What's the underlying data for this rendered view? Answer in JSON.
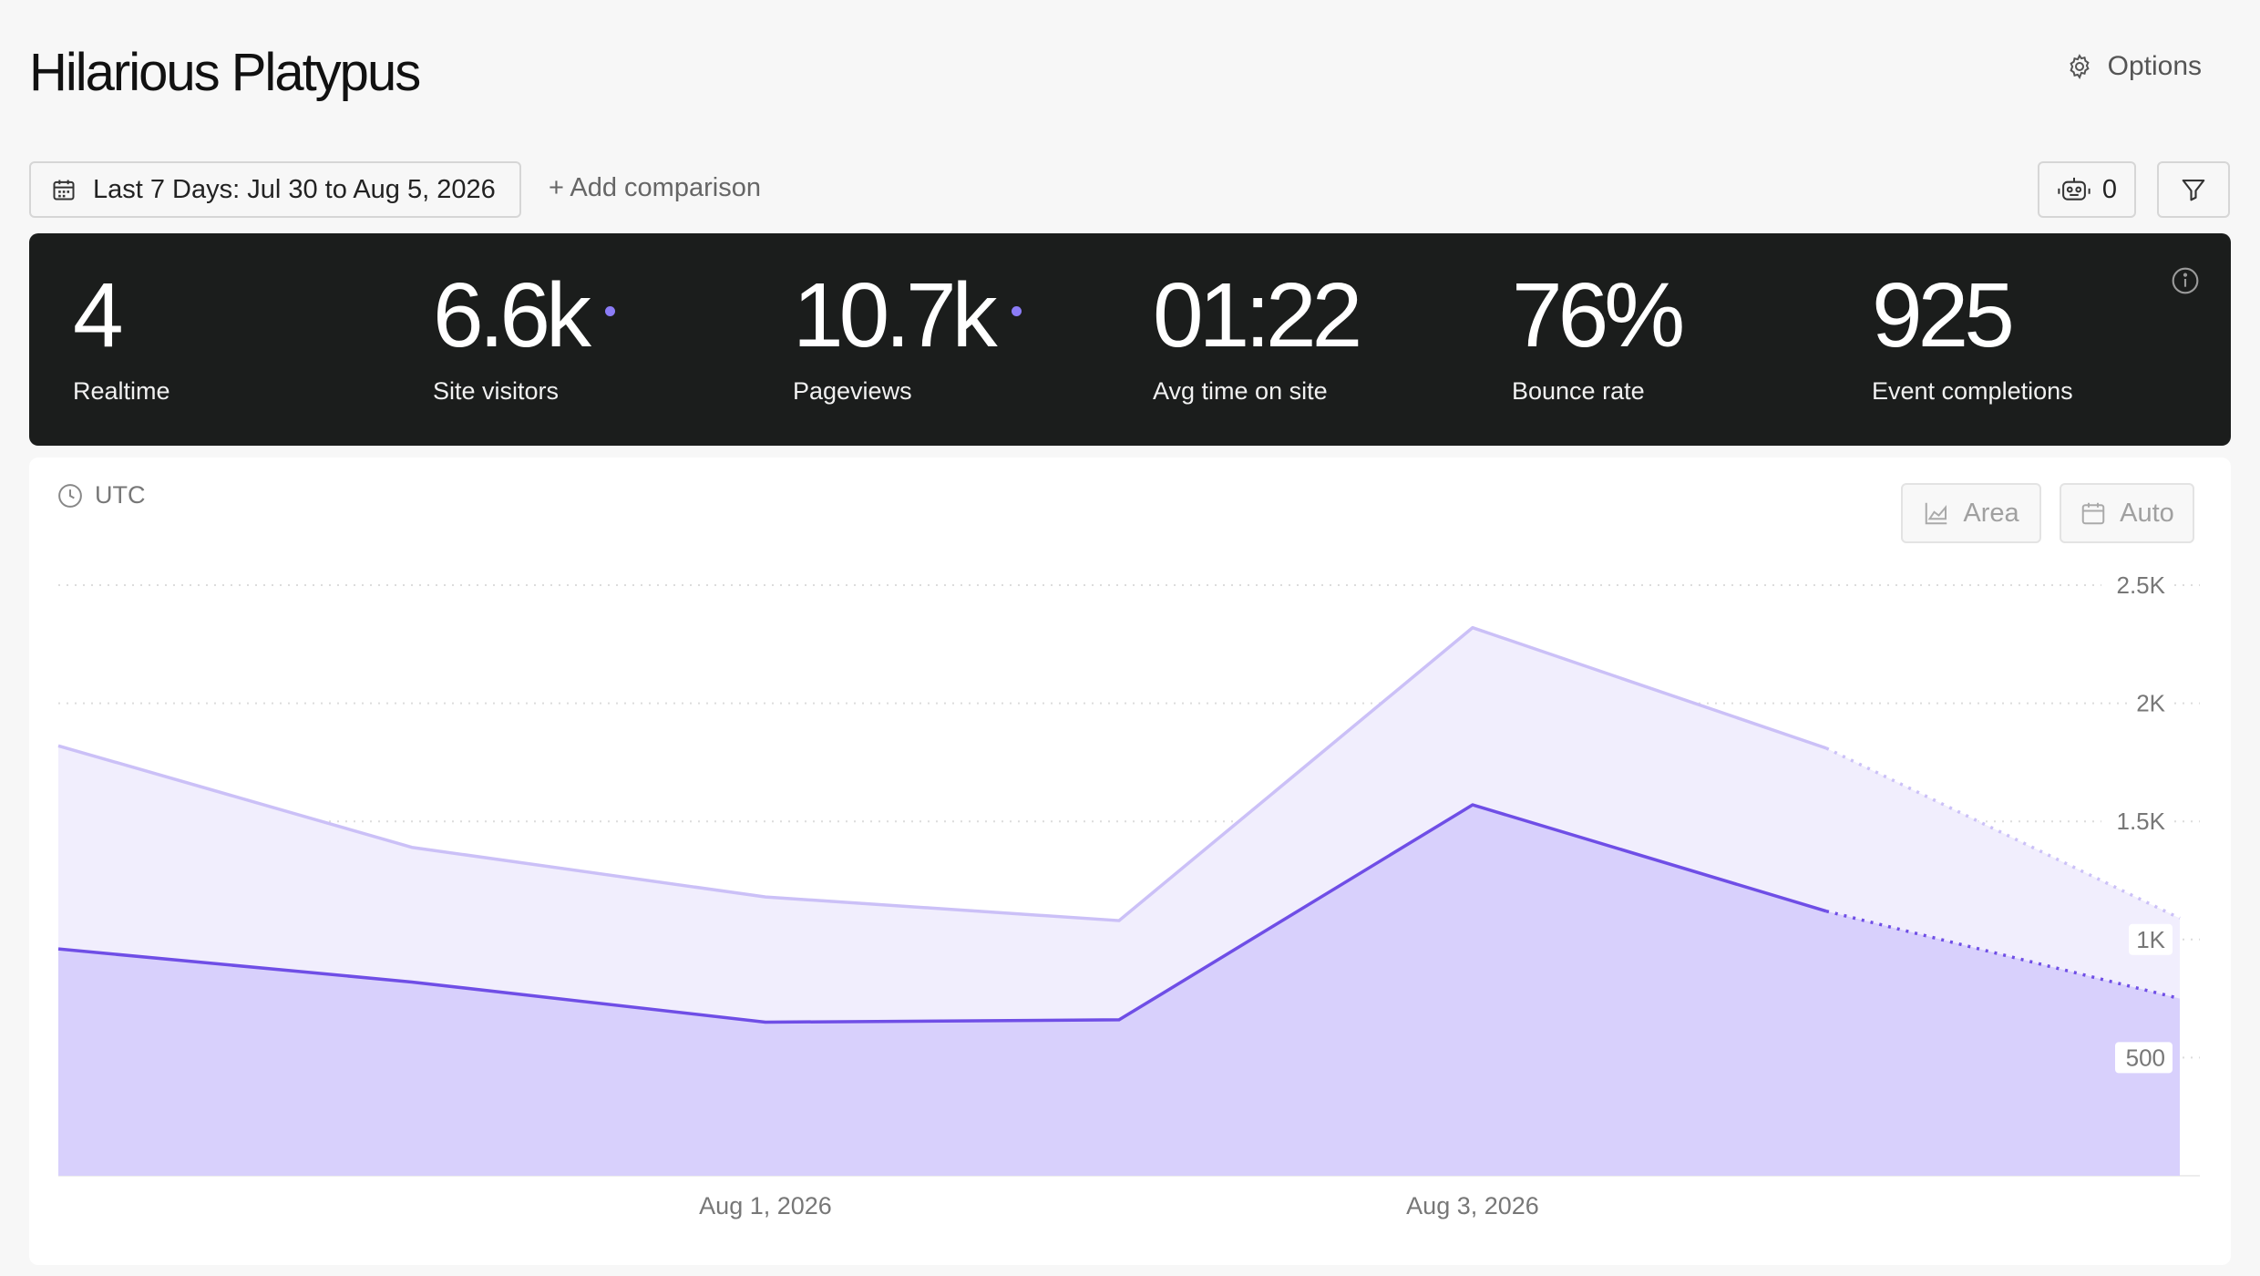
{
  "header": {
    "title": "Hilarious Platypus",
    "options_label": "Options"
  },
  "toolbar": {
    "date_range_label": "Last 7 Days: Jul 30 to Aug 5, 2026",
    "add_comparison_label": "+ Add comparison",
    "bot_count": "0"
  },
  "stats": [
    {
      "value": "4",
      "label": "Realtime",
      "dot": false
    },
    {
      "value": "6.6k",
      "label": "Site visitors",
      "dot": true
    },
    {
      "value": "10.7k",
      "label": "Pageviews",
      "dot": true
    },
    {
      "value": "01:22",
      "label": "Avg time on site",
      "dot": false
    },
    {
      "value": "76%",
      "label": "Bounce rate",
      "dot": false
    },
    {
      "value": "925",
      "label": "Event completions",
      "dot": false
    }
  ],
  "chart_controls": {
    "timezone_label": "UTC",
    "type_label": "Area",
    "interval_label": "Auto"
  },
  "colors": {
    "accent": "#6f4ee6",
    "pageviews_line": "#cbc0f7",
    "pageviews_fill": "#f1eefd",
    "visitors_fill": "#d8d0fc",
    "stats_bg": "#1b1d1c"
  },
  "chart_data": {
    "type": "area",
    "x": [
      "Jul 30, 2026",
      "Jul 31, 2026",
      "Aug 1, 2026",
      "Aug 2, 2026",
      "Aug 3, 2026",
      "Aug 4, 2026",
      "Aug 5, 2026"
    ],
    "x_tick_labels": [
      "Aug 1, 2026",
      "Aug 3, 2026"
    ],
    "x_tick_indices": [
      2,
      4
    ],
    "y_ticks": [
      500,
      1000,
      1500,
      2000,
      2500
    ],
    "y_tick_labels": [
      "500",
      "1K",
      "1.5K",
      "2K",
      "2.5K"
    ],
    "ylim": [
      0,
      2500
    ],
    "grid": true,
    "partial_from_index": 5,
    "series": [
      {
        "key": "pageviews",
        "values": [
          1820,
          1390,
          1180,
          1080,
          2320,
          1810,
          1090
        ]
      },
      {
        "key": "visitors",
        "values": [
          960,
          820,
          650,
          660,
          1570,
          1120,
          750
        ]
      }
    ]
  }
}
